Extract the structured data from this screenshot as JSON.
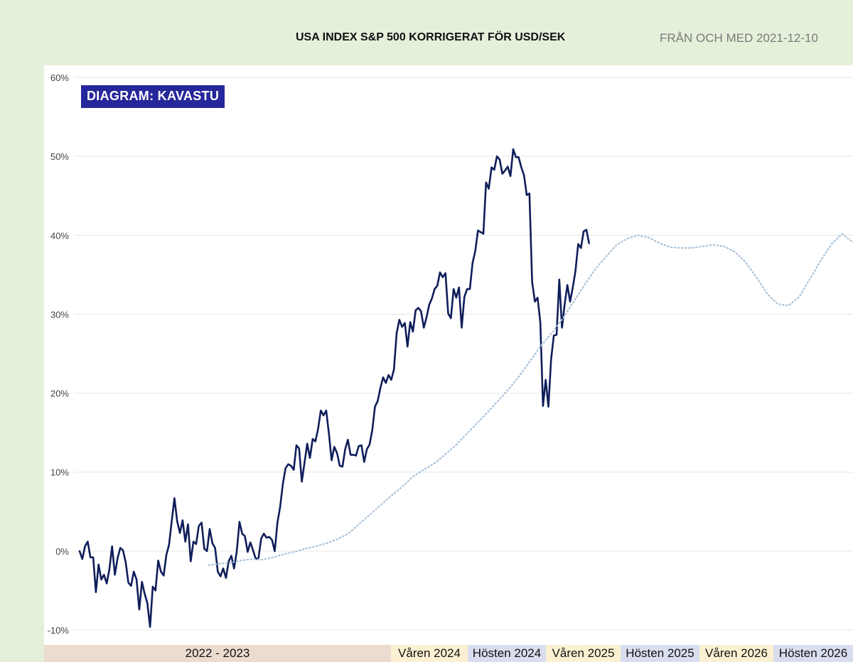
{
  "header": {
    "title": "USA INDEX S&P 500 KORRIGERAT FÖR USD/SEK",
    "subtitle": "FRÅN OCH MED 2021-12-10"
  },
  "badge": {
    "label": "DIAGRAM: KAVASTU"
  },
  "periods": [
    {
      "label": "2022 -  2023",
      "color": "#ecdcd0"
    },
    {
      "label": "Våren 2024",
      "color": "#fbf1d2"
    },
    {
      "label": "Hösten 2024",
      "color": "#d9deef"
    },
    {
      "label": "Våren 2025",
      "color": "#fbf1d2"
    },
    {
      "label": "Hösten 2025",
      "color": "#d9deef"
    },
    {
      "label": "Våren 2026",
      "color": "#fbf1d2"
    },
    {
      "label": "Hösten 2026",
      "color": "#d9deef"
    }
  ],
  "colors": {
    "line": "#0f1e5a",
    "forecast": "#a9c3d9",
    "grid": "#e6e6e6",
    "tick_text": "#444444"
  },
  "chart_data": {
    "type": "line",
    "title": "USA INDEX S&P 500 KORRIGERAT FÖR USD/SEK",
    "subtitle": "FRÅN OCH MED 2021-12-10",
    "ylim": [
      -10,
      60
    ],
    "yticks": [
      -10,
      0,
      10,
      20,
      30,
      40,
      50,
      60
    ],
    "ytick_labels": [
      "-10%",
      "0%",
      "10%",
      "20%",
      "30%",
      "40%",
      "50%",
      "60%"
    ],
    "grid": true,
    "series": [
      {
        "style": "solid",
        "x_range": [
          0,
          166
        ],
        "values": [
          0.0,
          -1.0,
          0.6,
          1.2,
          -0.8,
          -0.8,
          -5.2,
          -1.7,
          -3.6,
          -3.0,
          -4.1,
          -2.3,
          0.6,
          -3.0,
          -0.9,
          0.4,
          0.1,
          -1.4,
          -4.0,
          -4.4,
          -2.6,
          -3.6,
          -7.4,
          -3.9,
          -5.4,
          -6.6,
          -9.6,
          -4.5,
          -5.0,
          -1.2,
          -2.6,
          -3.1,
          -0.5,
          0.8,
          3.8,
          6.7,
          3.8,
          2.3,
          3.9,
          1.2,
          3.4,
          -1.3,
          1.2,
          0.9,
          3.2,
          3.6,
          0.3,
          0.0,
          2.8,
          1.0,
          0.4,
          -2.6,
          -3.2,
          -2.2,
          -3.4,
          -1.3,
          -0.6,
          -2.2,
          0.0,
          3.7,
          2.2,
          1.9,
          -0.1,
          1.1,
          0.1,
          -1.0,
          -0.9,
          1.6,
          2.2,
          1.7,
          1.8,
          1.4,
          0.0,
          3.6,
          5.6,
          8.5,
          10.5,
          11.0,
          10.8,
          10.3,
          13.4,
          13.0,
          8.8,
          11.2,
          13.6,
          11.8,
          14.2,
          13.9,
          15.5,
          17.8,
          17.2,
          17.8,
          14.9,
          11.5,
          13.2,
          12.4,
          10.8,
          10.7,
          12.9,
          14.1,
          12.2,
          12.2,
          12.1,
          13.3,
          13.4,
          11.3,
          12.9,
          13.5,
          15.3,
          18.3,
          19.0,
          20.7,
          22.0,
          21.3,
          22.3,
          21.7,
          23.0,
          27.6,
          29.3,
          28.4,
          28.9,
          25.9,
          29.0,
          27.8,
          30.5,
          30.8,
          30.4,
          28.3,
          29.6,
          31.2,
          32.0,
          33.2,
          33.6,
          35.3,
          34.7,
          35.2,
          30.1,
          29.5,
          33.2,
          32.1,
          33.4,
          28.3,
          32.2,
          33.2,
          33.2,
          36.5,
          38.0,
          40.6,
          40.4,
          40.2,
          46.7,
          45.9,
          48.6,
          48.3,
          50.0,
          49.6,
          47.8,
          48.2,
          48.7,
          47.5,
          50.9,
          49.9,
          49.9,
          48.6,
          47.6,
          45.1,
          45.3,
          34.1,
          31.6,
          32.1,
          29.0,
          18.4,
          21.7,
          18.3,
          24.3,
          27.3,
          27.4,
          34.4,
          28.3,
          31.3,
          33.7,
          31.6,
          33.4,
          35.5,
          38.9,
          38.4,
          40.5,
          40.7,
          39.0
        ]
      },
      {
        "style": "dotted",
        "x_range": [
          42,
          252
        ],
        "values": [
          -1.8,
          -1.6,
          -1.5,
          -1.2,
          -1.0,
          -1.1,
          -0.8,
          -0.4,
          -0.1,
          0.3,
          0.6,
          1.0,
          1.5,
          2.2,
          3.4,
          4.6,
          5.8,
          7.0,
          8.1,
          9.4,
          10.3,
          11.1,
          12.2,
          13.4,
          14.8,
          16.2,
          17.6,
          19.1,
          20.6,
          22.3,
          24.2,
          26.1,
          27.7,
          29.5,
          31.6,
          33.7,
          35.7,
          37.3,
          38.8,
          39.6,
          40.0,
          39.7,
          39.0,
          38.5,
          38.4,
          38.4,
          38.6,
          38.8,
          38.6,
          37.9,
          36.6,
          34.7,
          32.6,
          31.3,
          31.1,
          32.2,
          34.5,
          36.8,
          38.9,
          40.2,
          39.1
        ]
      }
    ]
  }
}
